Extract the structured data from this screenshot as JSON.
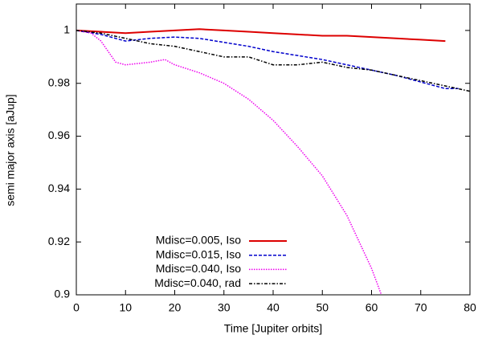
{
  "chart_data": {
    "type": "line",
    "xlabel": "Time [Jupiter orbits]",
    "ylabel": "semi major axis [aJup]",
    "xlim": [
      0,
      80
    ],
    "xticks": [
      0,
      10,
      20,
      30,
      40,
      50,
      60,
      70,
      80
    ],
    "ylim": [
      0.9,
      1.01
    ],
    "yticks": [
      0.9,
      0.92,
      0.94,
      0.96,
      0.98,
      1
    ],
    "legend": "lower-left",
    "series": [
      {
        "name": "Mdisc=0.005, Iso",
        "color": "#dd0000",
        "dash": "solid",
        "x": [
          0,
          5,
          10,
          15,
          20,
          25,
          30,
          35,
          40,
          45,
          50,
          55,
          60,
          65,
          70,
          75
        ],
        "values": [
          1,
          0.9995,
          0.999,
          0.9995,
          1.0,
          1.0005,
          1.0,
          0.9995,
          0.999,
          0.9985,
          0.998,
          0.998,
          0.9975,
          0.997,
          0.9965,
          0.996
        ]
      },
      {
        "name": "Mdisc=0.015, Iso",
        "color": "#0000cc",
        "dash": "dashed",
        "x": [
          0,
          5,
          10,
          15,
          20,
          25,
          30,
          35,
          40,
          45,
          50,
          55,
          60,
          65,
          70,
          75,
          78
        ],
        "values": [
          1,
          0.9985,
          0.996,
          0.997,
          0.9975,
          0.997,
          0.9955,
          0.994,
          0.992,
          0.9905,
          0.989,
          0.987,
          0.985,
          0.983,
          0.9805,
          0.978,
          0.978
        ]
      },
      {
        "name": "Mdisc=0.040, Iso",
        "color": "#ee00ee",
        "dash": "dotted",
        "x": [
          0,
          3,
          5,
          8,
          10,
          15,
          18,
          20,
          25,
          30,
          35,
          40,
          45,
          50,
          55,
          60,
          62
        ],
        "values": [
          1,
          0.999,
          0.996,
          0.988,
          0.987,
          0.988,
          0.989,
          0.987,
          0.984,
          0.98,
          0.974,
          0.966,
          0.956,
          0.945,
          0.93,
          0.91,
          0.9
        ]
      },
      {
        "name": "Mdisc=0.040, rad",
        "color": "#000000",
        "dash": "dashdot",
        "x": [
          0,
          5,
          10,
          15,
          20,
          25,
          30,
          35,
          40,
          45,
          50,
          55,
          60,
          65,
          70,
          75,
          80
        ],
        "values": [
          1,
          0.999,
          0.997,
          0.995,
          0.994,
          0.992,
          0.99,
          0.99,
          0.987,
          0.987,
          0.988,
          0.986,
          0.985,
          0.983,
          0.981,
          0.979,
          0.977
        ]
      }
    ]
  }
}
